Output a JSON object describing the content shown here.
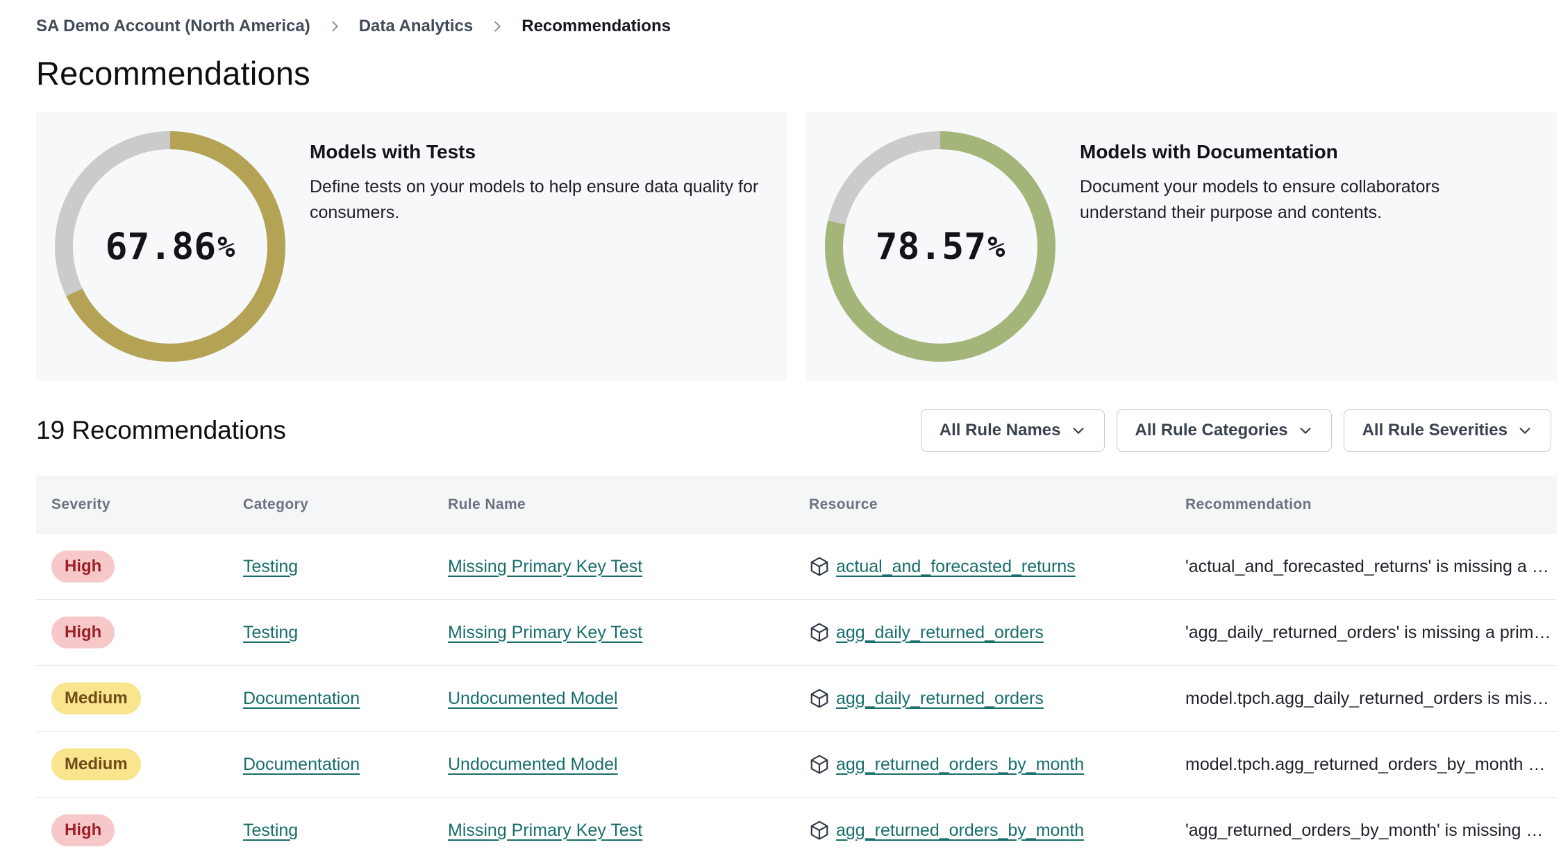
{
  "breadcrumb": {
    "items": [
      {
        "label": "SA Demo Account (North America)"
      },
      {
        "label": "Data Analytics"
      },
      {
        "label": "Recommendations"
      }
    ]
  },
  "page": {
    "title": "Recommendations"
  },
  "metric_cards": [
    {
      "title": "Models with Tests",
      "description": "Define tests on your models to help ensure data quality for consumers.",
      "percent": 67.86,
      "percent_label": "67.86",
      "percent_sign": "%",
      "ring_color": "#b5a355",
      "track_color": "#cbcbcb"
    },
    {
      "title": "Models with Documentation",
      "description": "Document your models to ensure collaborators understand their purpose and contents.",
      "percent": 78.57,
      "percent_label": "78.57",
      "percent_sign": "%",
      "ring_color": "#a4b579",
      "track_color": "#cbcbcb"
    }
  ],
  "chart_data": [
    {
      "type": "pie",
      "variant": "donut",
      "title": "Models with Tests",
      "series": [
        {
          "name": "Models with tests",
          "value": 67.86
        },
        {
          "name": "Remaining",
          "value": 32.14
        }
      ],
      "center_label": "67.86%",
      "colors": {
        "value": "#b5a355",
        "track": "#cbcbcb"
      }
    },
    {
      "type": "pie",
      "variant": "donut",
      "title": "Models with Documentation",
      "series": [
        {
          "name": "Models with documentation",
          "value": 78.57
        },
        {
          "name": "Remaining",
          "value": 21.43
        }
      ],
      "center_label": "78.57%",
      "colors": {
        "value": "#a4b579",
        "track": "#cbcbcb"
      }
    }
  ],
  "list": {
    "count_label": "19 Recommendations"
  },
  "filters": [
    {
      "label": "All Rule Names"
    },
    {
      "label": "All Rule Categories"
    },
    {
      "label": "All Rule Severities"
    }
  ],
  "badge_styles": {
    "high": {
      "bg": "#f7c8ca",
      "fg": "#9b2027"
    },
    "medium": {
      "bg": "#f9e58d",
      "fg": "#6f4b18"
    }
  },
  "table": {
    "columns": [
      "Severity",
      "Category",
      "Rule Name",
      "Resource",
      "Recommendation"
    ],
    "rows": [
      {
        "severity": "High",
        "category": "Testing",
        "rule_name": "Missing Primary Key Test",
        "resource": "actual_and_forecasted_returns",
        "recommendation": "'actual_and_forecasted_returns' is missing a …"
      },
      {
        "severity": "High",
        "category": "Testing",
        "rule_name": "Missing Primary Key Test",
        "resource": "agg_daily_returned_orders",
        "recommendation": "'agg_daily_returned_orders' is missing a prim…"
      },
      {
        "severity": "Medium",
        "category": "Documentation",
        "rule_name": "Undocumented Model",
        "resource": "agg_daily_returned_orders",
        "recommendation": "model.tpch.agg_daily_returned_orders is mis…"
      },
      {
        "severity": "Medium",
        "category": "Documentation",
        "rule_name": "Undocumented Model",
        "resource": "agg_returned_orders_by_month",
        "recommendation": "model.tpch.agg_returned_orders_by_month …"
      },
      {
        "severity": "High",
        "category": "Testing",
        "rule_name": "Missing Primary Key Test",
        "resource": "agg_returned_orders_by_month",
        "recommendation": "'agg_returned_orders_by_month' is missing …"
      }
    ]
  }
}
